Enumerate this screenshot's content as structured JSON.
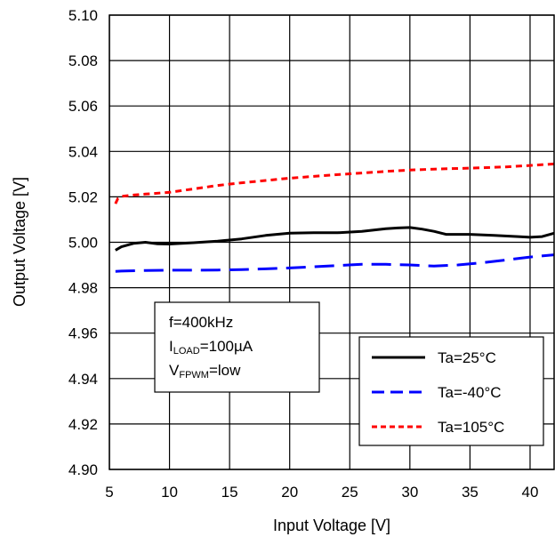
{
  "chart_data": {
    "type": "line",
    "xlabel": "Input Voltage [V]",
    "ylabel": "Output Voltage [V]",
    "xlim": [
      5,
      42
    ],
    "ylim": [
      4.9,
      5.1
    ],
    "xticks": [
      5,
      10,
      15,
      20,
      25,
      30,
      35,
      40
    ],
    "xtick_labels": [
      "5",
      "10",
      "15",
      "20",
      "25",
      "30",
      "35",
      "40"
    ],
    "yticks": [
      4.9,
      4.92,
      4.94,
      4.96,
      4.98,
      5.0,
      5.02,
      5.04,
      5.06,
      5.08,
      5.1
    ],
    "ytick_labels": [
      "4.90",
      "4.92",
      "4.94",
      "4.96",
      "4.98",
      "5.00",
      "5.02",
      "5.04",
      "5.06",
      "5.08",
      "5.10"
    ],
    "grid": true,
    "legend_position": "bottom-right",
    "annotation": {
      "line1": "f=400kHz",
      "line2_main": "I",
      "line2_sub": "LOAD",
      "line2_rest": "=100µA",
      "line3_main": "V",
      "line3_sub": "FPWM",
      "line3_rest": "=low"
    },
    "series": [
      {
        "name": "Ta=25°C",
        "color": "#000000",
        "style": "solid",
        "x": [
          5.5,
          6,
          7,
          8,
          9,
          10,
          12,
          14,
          16,
          18,
          20,
          22,
          24,
          26,
          28,
          29,
          30,
          31,
          32,
          33,
          35,
          37,
          39,
          40,
          41,
          42
        ],
        "y": [
          4.9965,
          4.998,
          4.9995,
          5.0,
          4.9993,
          4.9992,
          4.9998,
          5.0005,
          5.0015,
          5.003,
          5.004,
          5.0042,
          5.0042,
          5.0048,
          5.006,
          5.0063,
          5.0065,
          5.0058,
          5.0048,
          5.0035,
          5.0035,
          5.003,
          5.0025,
          5.0022,
          5.0025,
          5.004
        ]
      },
      {
        "name": "Ta=-40°C",
        "color": "#0000ff",
        "style": "dashed",
        "x": [
          5.5,
          6,
          8,
          10,
          12,
          14,
          16,
          18,
          20,
          22,
          24,
          26,
          28,
          30,
          32,
          34,
          36,
          38,
          40,
          42
        ],
        "y": [
          4.9872,
          4.9873,
          4.9876,
          4.9877,
          4.9877,
          4.9878,
          4.988,
          4.9883,
          4.9887,
          4.9892,
          4.9898,
          4.9903,
          4.9903,
          4.99,
          4.9895,
          4.99,
          4.991,
          4.9922,
          4.9935,
          4.9945
        ]
      },
      {
        "name": "Ta=105°C",
        "color": "#ff0000",
        "style": "dotted",
        "x": [
          5.5,
          5.7,
          6,
          6.5,
          7,
          8,
          10,
          12,
          14,
          16,
          18,
          20,
          22,
          24,
          26,
          28,
          30,
          32,
          34,
          36,
          38,
          40,
          42
        ],
        "y": [
          5.017,
          5.0192,
          5.0202,
          5.0205,
          5.0208,
          5.0212,
          5.022,
          5.0235,
          5.025,
          5.0262,
          5.0272,
          5.0282,
          5.029,
          5.0298,
          5.0305,
          5.0312,
          5.0318,
          5.0322,
          5.0325,
          5.0328,
          5.0332,
          5.0338,
          5.0345
        ]
      }
    ]
  }
}
